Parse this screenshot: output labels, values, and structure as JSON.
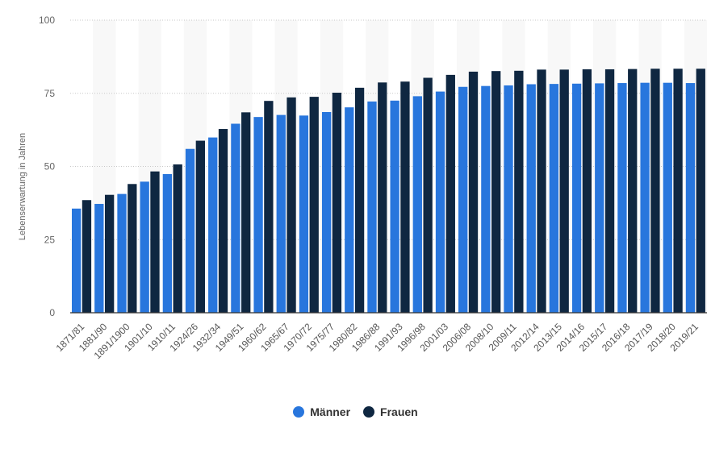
{
  "chart_data": {
    "type": "bar",
    "ylabel": "Lebenserwartung in Jahren",
    "ylim": [
      0,
      100
    ],
    "yticks": [
      0,
      25,
      50,
      75,
      100
    ],
    "grid": true,
    "legend_position": "bottom",
    "categories": [
      "1871/81",
      "1881/90",
      "1891/1900",
      "1901/10",
      "1910/11",
      "1924/26",
      "1932/34",
      "1949/51",
      "1960/62",
      "1965/67",
      "1970/72",
      "1975/77",
      "1980/82",
      "1986/88",
      "1991/93",
      "1996/98",
      "2001/03",
      "2006/08",
      "2008/10",
      "2009/11",
      "2012/14",
      "2013/15",
      "2014/16",
      "2015/17",
      "2016/18",
      "2017/19",
      "2018/20",
      "2019/21"
    ],
    "series": [
      {
        "name": "Männer",
        "color": "#2876dd",
        "values": [
          35.6,
          37.2,
          40.6,
          44.8,
          47.4,
          56.0,
          59.9,
          64.6,
          66.9,
          67.6,
          67.4,
          68.6,
          70.2,
          72.2,
          72.5,
          74.0,
          75.6,
          77.2,
          77.5,
          77.7,
          78.1,
          78.2,
          78.3,
          78.4,
          78.5,
          78.6,
          78.6,
          78.5
        ]
      },
      {
        "name": "Frauen",
        "color": "#0f2741",
        "values": [
          38.5,
          40.3,
          44.0,
          48.3,
          50.7,
          58.8,
          62.8,
          68.5,
          72.4,
          73.6,
          73.8,
          75.2,
          76.9,
          78.7,
          79.0,
          80.3,
          81.3,
          82.4,
          82.6,
          82.7,
          83.1,
          83.1,
          83.2,
          83.2,
          83.3,
          83.4,
          83.4,
          83.4
        ]
      }
    ]
  }
}
